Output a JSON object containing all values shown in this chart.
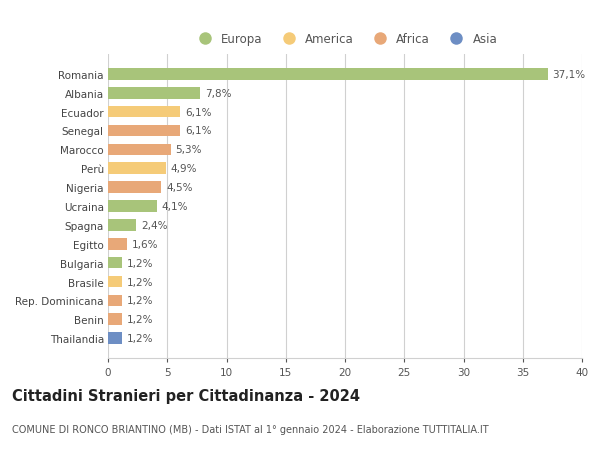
{
  "categories": [
    "Thailandia",
    "Benin",
    "Rep. Dominicana",
    "Brasile",
    "Bulgaria",
    "Egitto",
    "Spagna",
    "Ucraina",
    "Nigeria",
    "Perù",
    "Marocco",
    "Senegal",
    "Ecuador",
    "Albania",
    "Romania"
  ],
  "values": [
    1.2,
    1.2,
    1.2,
    1.2,
    1.2,
    1.6,
    2.4,
    4.1,
    4.5,
    4.9,
    5.3,
    6.1,
    6.1,
    7.8,
    37.1
  ],
  "colors": [
    "#6d8ec4",
    "#e8a878",
    "#e8a878",
    "#f5cb78",
    "#a8c47a",
    "#e8a878",
    "#a8c47a",
    "#a8c47a",
    "#e8a878",
    "#f5cb78",
    "#e8a878",
    "#e8a878",
    "#f5cb78",
    "#a8c47a",
    "#a8c47a"
  ],
  "labels": [
    "1,2%",
    "1,2%",
    "1,2%",
    "1,2%",
    "1,2%",
    "1,6%",
    "2,4%",
    "4,1%",
    "4,5%",
    "4,9%",
    "5,3%",
    "6,1%",
    "6,1%",
    "7,8%",
    "37,1%"
  ],
  "legend": [
    {
      "label": "Europa",
      "color": "#a8c47a"
    },
    {
      "label": "America",
      "color": "#f5cb78"
    },
    {
      "label": "Africa",
      "color": "#e8a878"
    },
    {
      "label": "Asia",
      "color": "#6d8ec4"
    }
  ],
  "xlim": [
    0,
    40
  ],
  "xticks": [
    0,
    5,
    10,
    15,
    20,
    25,
    30,
    35,
    40
  ],
  "title": "Cittadini Stranieri per Cittadinanza - 2024",
  "subtitle": "COMUNE DI RONCO BRIANTINO (MB) - Dati ISTAT al 1° gennaio 2024 - Elaborazione TUTTITALIA.IT",
  "bg_color": "#ffffff",
  "grid_color": "#d0d0d0",
  "bar_height": 0.62,
  "label_fontsize": 7.5,
  "tick_fontsize": 7.5,
  "title_fontsize": 10.5,
  "subtitle_fontsize": 7.0,
  "legend_fontsize": 8.5
}
